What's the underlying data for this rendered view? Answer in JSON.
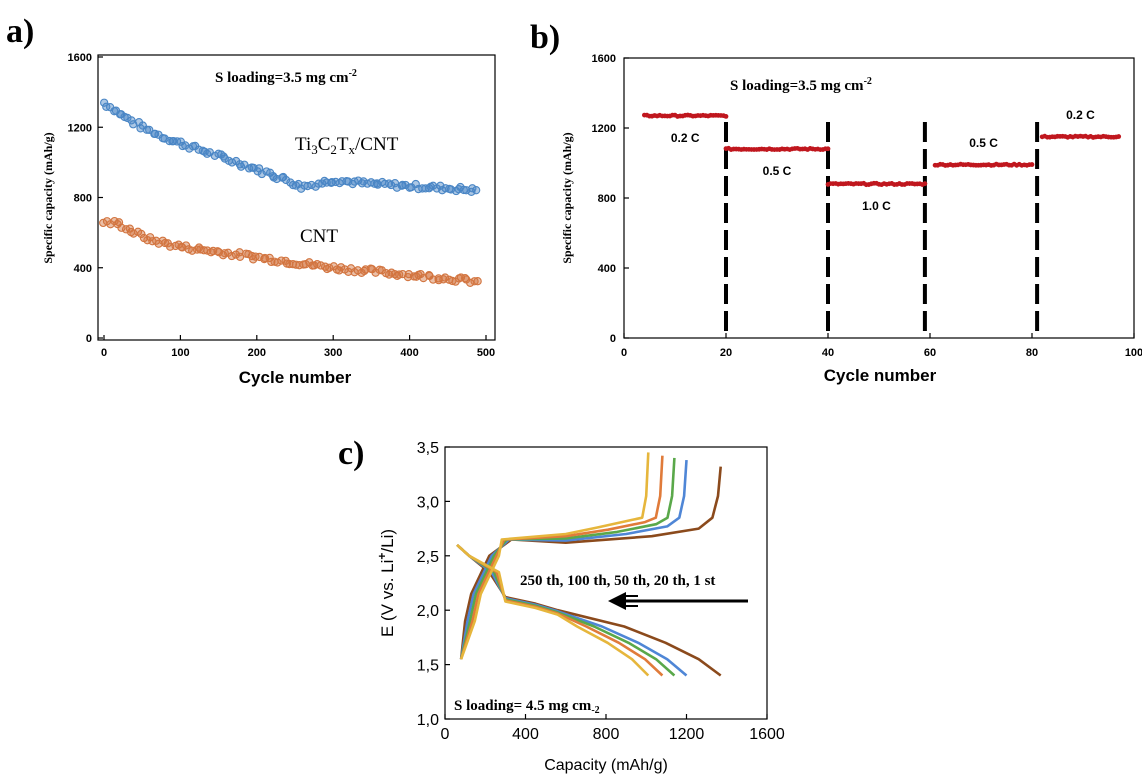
{
  "panels": {
    "a": {
      "letter": "a)"
    },
    "b": {
      "letter": "b)"
    },
    "c": {
      "letter": "c)"
    }
  },
  "chart_data": [
    {
      "id": "a",
      "type": "scatter",
      "xlabel": "Cycle number",
      "ylabel": "Specific capacity (mAh/g)",
      "xlim": [
        0,
        500
      ],
      "ylim": [
        0,
        1600
      ],
      "xticks": [
        "0",
        "100",
        "200",
        "300",
        "400",
        "500"
      ],
      "yticks": [
        "0",
        "400",
        "800",
        "1200",
        "1600"
      ],
      "annotation": "S loading=3.5 mg cm",
      "annotation_sup": "-2",
      "series": [
        {
          "name_main": "Ti",
          "name_parts": [
            "Ti",
            "3",
            "C",
            "2",
            "T",
            "x",
            "/CNT"
          ],
          "color": "#4a86c5",
          "x": [
            0,
            20,
            50,
            80,
            120,
            160,
            200,
            240,
            260,
            280,
            300,
            340,
            380,
            420,
            460,
            490
          ],
          "values": [
            1340,
            1280,
            1200,
            1140,
            1080,
            1020,
            960,
            900,
            860,
            880,
            900,
            880,
            870,
            860,
            850,
            840
          ]
        },
        {
          "name": "CNT",
          "color": "#d2743f",
          "x": [
            0,
            20,
            40,
            60,
            100,
            150,
            200,
            250,
            300,
            350,
            400,
            450,
            490
          ],
          "values": [
            660,
            650,
            600,
            560,
            520,
            490,
            460,
            430,
            400,
            380,
            360,
            340,
            320
          ]
        }
      ]
    },
    {
      "id": "b",
      "type": "scatter",
      "xlabel": "Cycle number",
      "ylabel": "Specific capacity (mAh/g)",
      "xlim": [
        0,
        100
      ],
      "ylim": [
        0,
        1600
      ],
      "xticks": [
        "0",
        "20",
        "40",
        "60",
        "80",
        "100"
      ],
      "yticks": [
        "0",
        "400",
        "800",
        "1200",
        "1600"
      ],
      "annotation": "S loading=3.5 mg cm",
      "annotation_sup": "-2",
      "color": "#c0171e",
      "divider_cycles": [
        20,
        40,
        59,
        81
      ],
      "segments": [
        {
          "rate": "0.2 C",
          "x0": 4,
          "x1": 20,
          "value": 1270
        },
        {
          "rate": "0.5 C",
          "x0": 20,
          "x1": 40,
          "value": 1080
        },
        {
          "rate": "1.0 C",
          "x0": 40,
          "x1": 59,
          "value": 880
        },
        {
          "rate": "0.5 C",
          "x0": 61,
          "x1": 80,
          "value": 990
        },
        {
          "rate": "0.2 C",
          "x0": 82,
          "x1": 97,
          "value": 1150
        }
      ]
    },
    {
      "id": "c",
      "type": "line",
      "xlabel": "Capacity (mAh/g)",
      "ylabel_parts": [
        "E (V vs. Li",
        "+",
        "/Li)"
      ],
      "xlim": [
        0,
        1600
      ],
      "ylim": [
        1.0,
        3.5
      ],
      "xticks": [
        "0",
        "400",
        "800",
        "1200",
        "1600"
      ],
      "yticks": [
        "1,0",
        "1,5",
        "2,0",
        "2,5",
        "3,0",
        "3,5"
      ],
      "annotation": "S loading= 4.5 mg cm",
      "annotation_sub": "-2",
      "arrow_label": "250 th, 100 th, 50 th, 20 th, 1 st",
      "series": [
        {
          "color": "#8b4a1c",
          "charge_end": 1370,
          "charge_top": 3.32,
          "discharge_end": 1370
        },
        {
          "color": "#4f86d6",
          "charge_end": 1200,
          "charge_top": 3.38,
          "discharge_end": 1200
        },
        {
          "color": "#5aa84a",
          "charge_end": 1140,
          "charge_top": 3.4,
          "discharge_end": 1140
        },
        {
          "color": "#e07b3a",
          "charge_end": 1080,
          "charge_top": 3.42,
          "discharge_end": 1080
        },
        {
          "color": "#e6b63c",
          "charge_end": 1010,
          "charge_top": 3.45,
          "discharge_end": 1010
        }
      ]
    }
  ]
}
